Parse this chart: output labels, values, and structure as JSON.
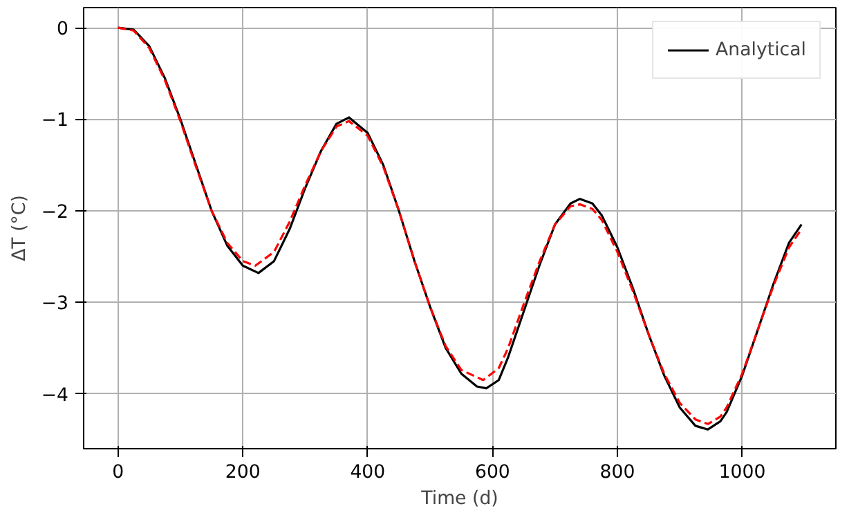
{
  "chart_data": {
    "type": "line",
    "xlabel": "Time (d)",
    "ylabel": "ΔT (°C)",
    "xlim": [
      -55,
      1150
    ],
    "ylim": [
      -4.6,
      0.22
    ],
    "xticks": [
      0,
      200,
      400,
      600,
      800,
      1000
    ],
    "yticks": [
      {
        "value": 0,
        "label": "0"
      },
      {
        "value": -1,
        "label": "−1"
      },
      {
        "value": -2,
        "label": "−2"
      },
      {
        "value": -3,
        "label": "−3"
      },
      {
        "value": -4,
        "label": "−4"
      }
    ],
    "grid": true,
    "legend": "top right",
    "series": [
      {
        "name": "Analytical",
        "color": "#000000",
        "line_style": "solid",
        "x": [
          0,
          25,
          50,
          75,
          100,
          125,
          150,
          175,
          200,
          225,
          250,
          275,
          300,
          325,
          350,
          370,
          400,
          425,
          450,
          475,
          500,
          525,
          550,
          575,
          590,
          610,
          625,
          650,
          675,
          700,
          725,
          740,
          760,
          775,
          800,
          825,
          850,
          875,
          900,
          925,
          945,
          965,
          975,
          1000,
          1025,
          1050,
          1075,
          1095
        ],
        "values": [
          0,
          -0.02,
          -0.2,
          -0.55,
          -1.0,
          -1.5,
          -2.0,
          -2.38,
          -2.6,
          -2.68,
          -2.55,
          -2.2,
          -1.75,
          -1.35,
          -1.05,
          -0.98,
          -1.15,
          -1.5,
          -2.0,
          -2.55,
          -3.05,
          -3.5,
          -3.78,
          -3.92,
          -3.94,
          -3.85,
          -3.6,
          -3.1,
          -2.6,
          -2.15,
          -1.92,
          -1.87,
          -1.92,
          -2.05,
          -2.4,
          -2.85,
          -3.35,
          -3.8,
          -4.15,
          -4.35,
          -4.39,
          -4.3,
          -4.2,
          -3.8,
          -3.3,
          -2.8,
          -2.35,
          -2.15
        ]
      },
      {
        "color": "#ff0000",
        "line_style": "dashed",
        "x": [
          0,
          25,
          50,
          75,
          100,
          125,
          150,
          175,
          200,
          220,
          250,
          275,
          300,
          325,
          350,
          370,
          400,
          425,
          450,
          475,
          500,
          525,
          550,
          585,
          610,
          625,
          650,
          675,
          700,
          725,
          740,
          760,
          775,
          800,
          825,
          850,
          875,
          900,
          925,
          945,
          965,
          975,
          1000,
          1025,
          1050,
          1075,
          1095
        ],
        "values": [
          0,
          -0.03,
          -0.22,
          -0.57,
          -1.02,
          -1.52,
          -2.0,
          -2.35,
          -2.55,
          -2.6,
          -2.45,
          -2.12,
          -1.72,
          -1.35,
          -1.08,
          -1.02,
          -1.18,
          -1.52,
          -2.0,
          -2.55,
          -3.05,
          -3.48,
          -3.74,
          -3.85,
          -3.72,
          -3.5,
          -3.02,
          -2.56,
          -2.15,
          -1.95,
          -1.93,
          -1.98,
          -2.1,
          -2.45,
          -2.88,
          -3.35,
          -3.78,
          -4.1,
          -4.28,
          -4.33,
          -4.25,
          -4.15,
          -3.78,
          -3.3,
          -2.82,
          -2.4,
          -2.2
        ]
      }
    ]
  }
}
